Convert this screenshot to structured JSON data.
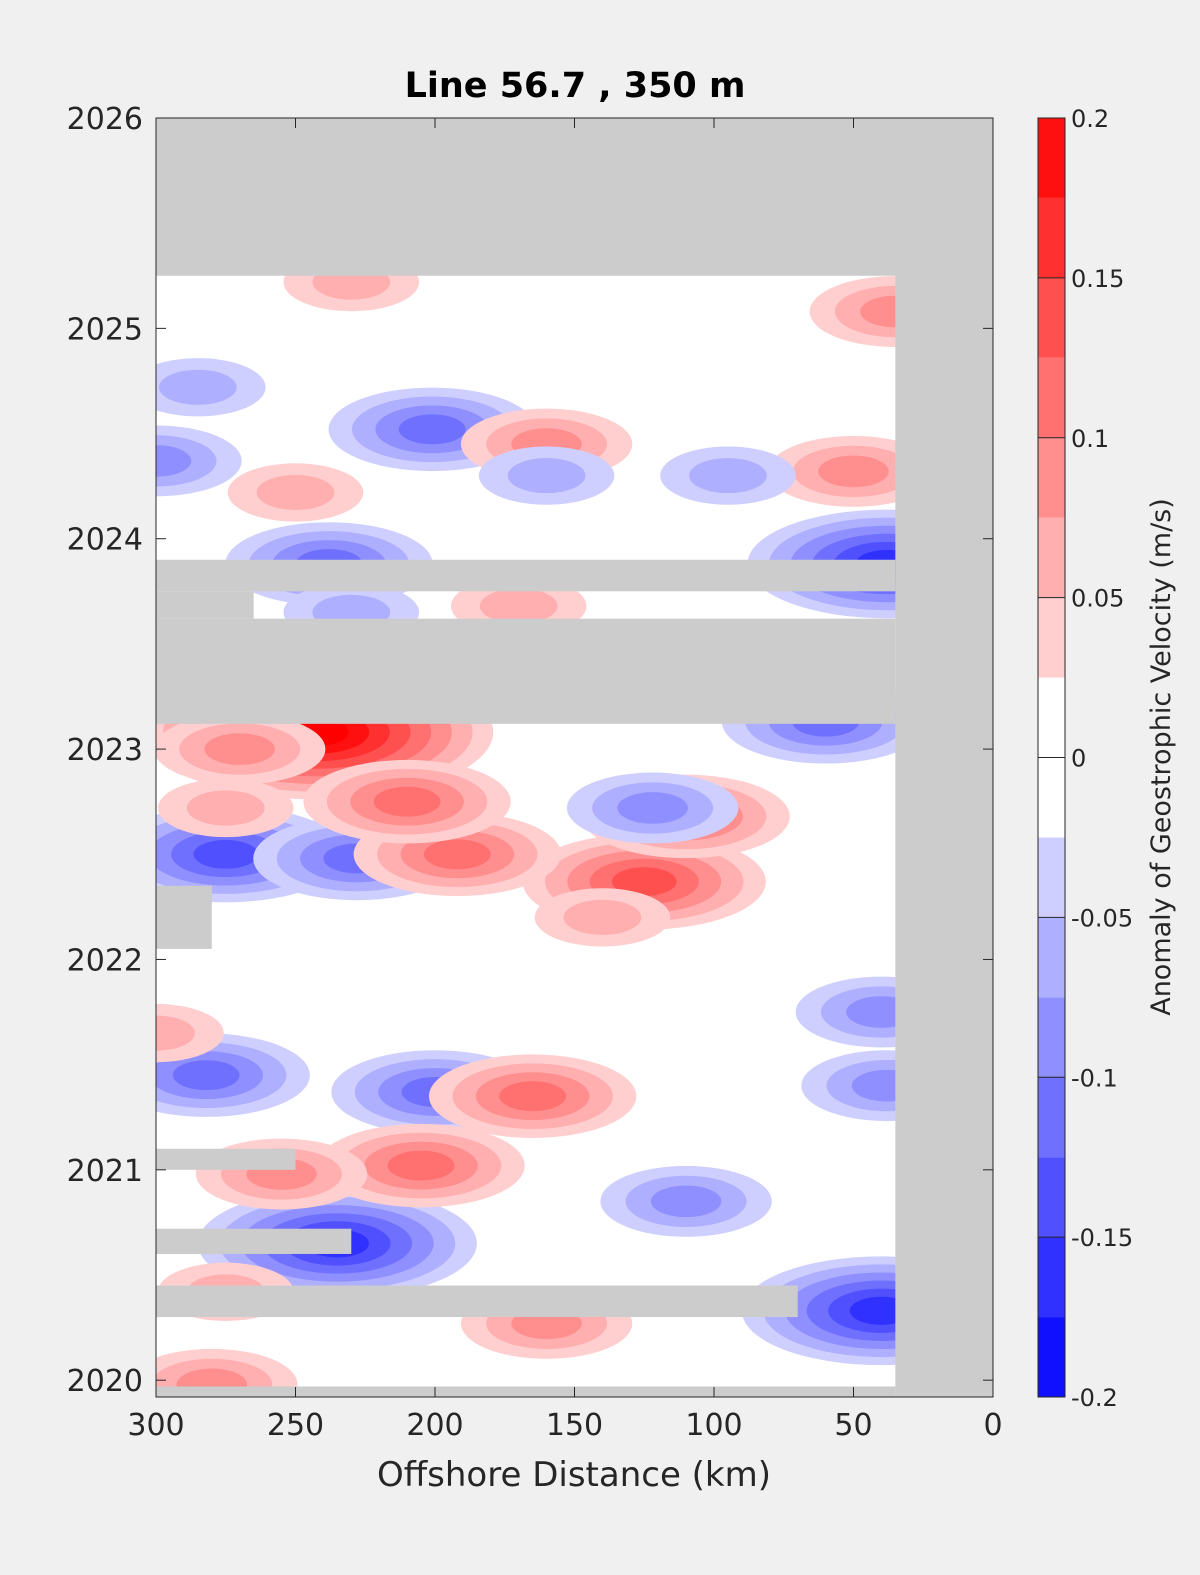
{
  "chart_data": {
    "type": "heatmap",
    "subtype": "filled-contour (Hovmöller)",
    "title": "Line 56.7 , 350 m",
    "xlabel": "Offshore Distance (km)",
    "xlim": [
      300,
      0
    ],
    "x_reversed": true,
    "xticks": [
      300,
      250,
      200,
      150,
      100,
      50,
      0
    ],
    "ylabel": "",
    "ylim": [
      2019.92,
      2026
    ],
    "yticks": [
      2020,
      2021,
      2022,
      2023,
      2024,
      2025,
      2026
    ],
    "colorbar": {
      "label": "Anomaly of Geostrophic Velocity (m/s)",
      "range": [
        -0.2,
        0.2
      ],
      "ticks": [
        0.2,
        0.15,
        0.1,
        0.05,
        0,
        -0.05,
        -0.1,
        -0.15,
        -0.2
      ],
      "levels": [
        -0.2,
        -0.175,
        -0.15,
        -0.125,
        -0.1,
        -0.075,
        -0.05,
        -0.025,
        0.025,
        0.05,
        0.075,
        0.1,
        0.125,
        0.15,
        0.175,
        0.2
      ],
      "colormap": "blue-white-red"
    },
    "missing_color": "#cccccc",
    "no_data_regions": [
      {
        "x": [
          300,
          0
        ],
        "y": [
          2025.25,
          2026
        ],
        "note": "no data after 2025.25"
      },
      {
        "x": [
          35,
          0
        ],
        "y": [
          2019.92,
          2026
        ],
        "note": "nearshore band"
      },
      {
        "x": [
          300,
          35
        ],
        "y": [
          2023.12,
          2023.62
        ]
      },
      {
        "x": [
          300,
          35
        ],
        "y": [
          2023.75,
          2023.9
        ]
      },
      {
        "x": [
          300,
          265
        ],
        "y": [
          2023.62,
          2023.75
        ]
      },
      {
        "x": [
          300,
          70
        ],
        "y": [
          2020.3,
          2020.45
        ]
      },
      {
        "x": [
          300,
          230
        ],
        "y": [
          2020.6,
          2020.72
        ]
      },
      {
        "x": [
          300,
          250
        ],
        "y": [
          2021.0,
          2021.1
        ]
      },
      {
        "x": [
          300,
          280
        ],
        "y": [
          2022.05,
          2022.35
        ]
      },
      {
        "x": [
          300,
          35
        ],
        "y": [
          2019.92,
          2019.97
        ]
      }
    ],
    "anomaly_features": [
      {
        "x": 242,
        "y": 2023.08,
        "value": 0.2
      },
      {
        "x": 235,
        "y": 2020.65,
        "value": -0.15
      },
      {
        "x": 38,
        "y": 2023.88,
        "value": -0.15
      },
      {
        "x": 40,
        "y": 2020.33,
        "value": -0.15
      },
      {
        "x": 275,
        "y": 2022.5,
        "value": -0.125
      },
      {
        "x": 201,
        "y": 2024.52,
        "value": -0.1
      },
      {
        "x": 200,
        "y": 2021.37,
        "value": -0.1
      },
      {
        "x": 282,
        "y": 2021.45,
        "value": -0.1
      },
      {
        "x": 228,
        "y": 2022.48,
        "value": -0.1
      },
      {
        "x": 125,
        "y": 2022.37,
        "value": 0.125
      },
      {
        "x": 192,
        "y": 2022.5,
        "value": 0.1
      },
      {
        "x": 210,
        "y": 2022.75,
        "value": 0.1
      },
      {
        "x": 165,
        "y": 2021.35,
        "value": 0.1
      },
      {
        "x": 110,
        "y": 2022.68,
        "value": 0.1
      },
      {
        "x": 205,
        "y": 2021.02,
        "value": 0.1
      },
      {
        "x": 160,
        "y": 2024.45,
        "value": 0.075
      },
      {
        "x": 50,
        "y": 2024.32,
        "value": 0.075
      },
      {
        "x": 35,
        "y": 2025.08,
        "value": 0.075
      },
      {
        "x": 238,
        "y": 2023.88,
        "value": -0.1
      },
      {
        "x": 160,
        "y": 2020.27,
        "value": 0.075
      },
      {
        "x": 280,
        "y": 2019.98,
        "value": 0.075
      },
      {
        "x": 122,
        "y": 2022.72,
        "value": -0.075
      },
      {
        "x": 60,
        "y": 2023.13,
        "value": -0.1
      },
      {
        "x": 270,
        "y": 2023.0,
        "value": 0.075
      },
      {
        "x": 40,
        "y": 2021.75,
        "value": -0.075
      },
      {
        "x": 38,
        "y": 2021.4,
        "value": -0.075
      },
      {
        "x": 230,
        "y": 2023.65,
        "value": -0.05
      },
      {
        "x": 300,
        "y": 2024.37,
        "value": -0.075
      },
      {
        "x": 285,
        "y": 2024.72,
        "value": -0.05
      },
      {
        "x": 250,
        "y": 2024.22,
        "value": 0.05
      },
      {
        "x": 230,
        "y": 2025.22,
        "value": 0.05
      },
      {
        "x": 160,
        "y": 2024.3,
        "value": -0.05
      },
      {
        "x": 95,
        "y": 2024.3,
        "value": -0.05
      },
      {
        "x": 110,
        "y": 2020.85,
        "value": -0.075
      },
      {
        "x": 275,
        "y": 2020.42,
        "value": 0.05
      },
      {
        "x": 255,
        "y": 2020.98,
        "value": 0.075
      },
      {
        "x": 275,
        "y": 2022.72,
        "value": 0.05
      },
      {
        "x": 170,
        "y": 2023.68,
        "value": 0.05
      },
      {
        "x": 300,
        "y": 2021.65,
        "value": 0.05
      },
      {
        "x": 140,
        "y": 2022.2,
        "value": 0.05
      }
    ]
  }
}
